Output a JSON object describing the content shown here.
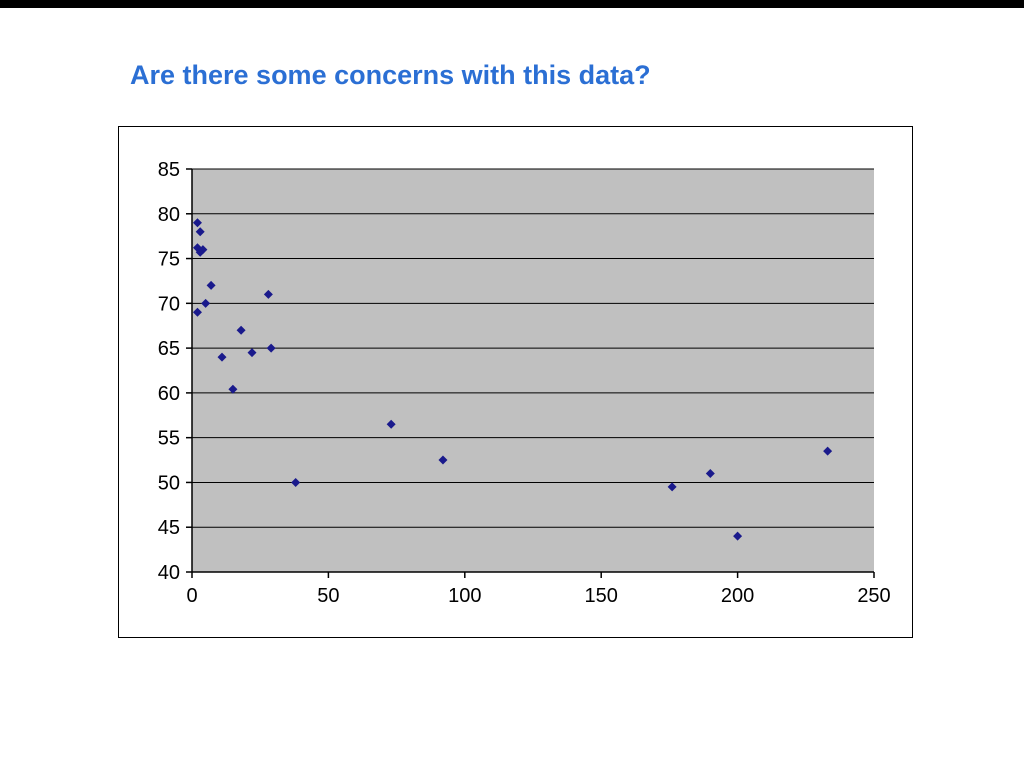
{
  "slide": {
    "title": "Are there some concerns with this data?",
    "title_color": "#2b6fd4"
  },
  "chart_data": {
    "type": "scatter",
    "title": "",
    "xlabel": "",
    "ylabel": "",
    "xlim": [
      0,
      250
    ],
    "ylim": [
      40,
      85
    ],
    "x_ticks": [
      0,
      50,
      100,
      150,
      200,
      250
    ],
    "y_ticks": [
      85,
      80,
      75,
      70,
      65,
      60,
      55,
      50,
      45,
      40
    ],
    "grid": "horizontal",
    "legend": "none",
    "plot_bg_color": "#c0c0c0",
    "gridline_color": "#000000",
    "axis_color": "#000000",
    "marker": {
      "shape": "diamond",
      "color": "#1a1a8c",
      "size": 9
    },
    "points": [
      [
        2,
        79
      ],
      [
        3,
        78
      ],
      [
        2,
        76.2
      ],
      [
        4,
        76
      ],
      [
        3,
        75.7
      ],
      [
        7,
        72
      ],
      [
        5,
        70
      ],
      [
        2,
        69
      ],
      [
        28,
        71
      ],
      [
        18,
        67
      ],
      [
        11,
        64
      ],
      [
        22,
        64.5
      ],
      [
        29,
        65
      ],
      [
        15,
        60.4
      ],
      [
        38,
        50
      ],
      [
        73,
        56.5
      ],
      [
        92,
        52.5
      ],
      [
        176,
        49.5
      ],
      [
        190,
        51
      ],
      [
        200,
        44
      ],
      [
        233,
        53.5
      ]
    ]
  }
}
